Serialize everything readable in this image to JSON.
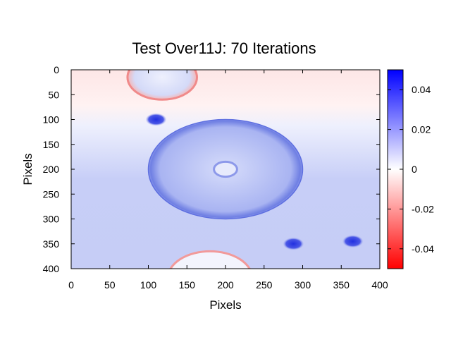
{
  "chart_data": {
    "type": "heatmap",
    "title": "Test Over11J: 70 Iterations",
    "xlabel": "Pixels",
    "ylabel": "Pixels",
    "xlim": [
      0,
      400
    ],
    "ylim": [
      0,
      400
    ],
    "y_inverted": true,
    "x_ticks": [
      "0",
      "50",
      "100",
      "150",
      "200",
      "250",
      "300",
      "350",
      "400"
    ],
    "y_ticks": [
      "0",
      "50",
      "100",
      "150",
      "200",
      "250",
      "300",
      "350",
      "400"
    ],
    "colorbar": {
      "range": [
        -0.05,
        0.05
      ],
      "ticks": [
        "0.04",
        "0.02",
        "0",
        "-0.02",
        "-0.04"
      ],
      "tick_values": [
        0.04,
        0.02,
        0,
        -0.02,
        -0.04
      ],
      "colors": {
        "low": "#ff0000",
        "mid": "#ffffff",
        "high": "#0000ff"
      }
    },
    "features": [
      {
        "kind": "large-ring",
        "cx": 200,
        "cy": 200,
        "rx": 100,
        "ry": 100,
        "inside_value": 0.012,
        "edge_value": 0.03
      },
      {
        "kind": "small-ring",
        "cx": 200,
        "cy": 200,
        "r": 15,
        "inside_value": 0.0
      },
      {
        "kind": "top-circle",
        "cx": 118,
        "cy": 15,
        "r": 45,
        "inside_value": 0.008,
        "edge_value": -0.03
      },
      {
        "kind": "bottom-circle",
        "cx": 180,
        "cy": 420,
        "r": 55,
        "edge_value": -0.02
      },
      {
        "kind": "spot",
        "cx": 110,
        "cy": 100,
        "value": 0.04
      },
      {
        "kind": "spot",
        "cx": 288,
        "cy": 350,
        "value": 0.045
      },
      {
        "kind": "spot",
        "cx": 365,
        "cy": 345,
        "value": 0.045
      }
    ]
  }
}
